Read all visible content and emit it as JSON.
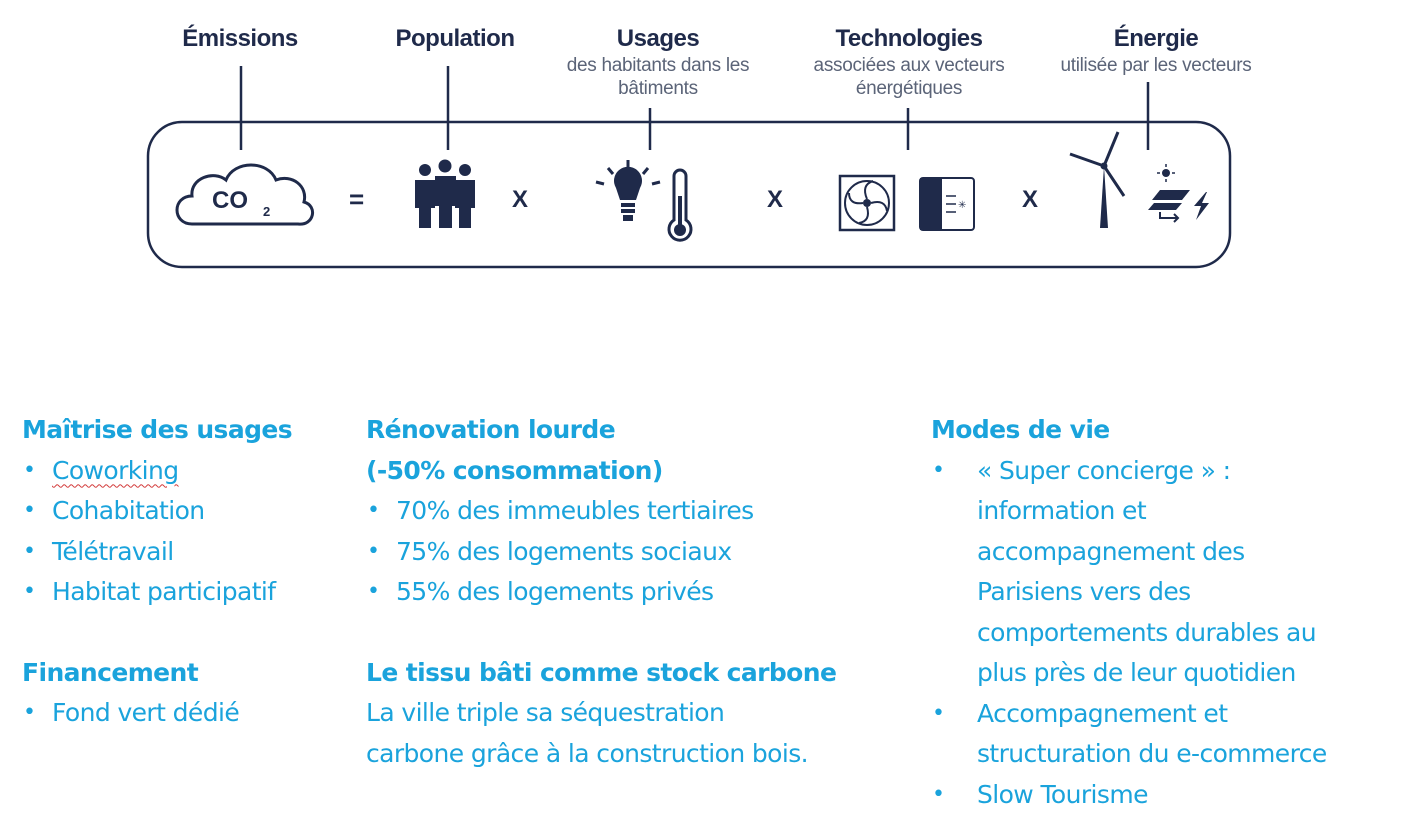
{
  "equation": {
    "terms": [
      {
        "title": "Émissions",
        "subtitle": ""
      },
      {
        "title": "Population",
        "subtitle": ""
      },
      {
        "title": "Usages",
        "subtitle": "des habitants dans les bâtiments"
      },
      {
        "title": "Technologies",
        "subtitle": "associées aux vecteurs énergétiques"
      },
      {
        "title": "Énergie",
        "subtitle": "utilisée par les vecteurs"
      }
    ],
    "co2_text": "CO",
    "co2_sub": "2",
    "equals": "=",
    "times": "X"
  },
  "colors": {
    "accent": "#1aa3dc",
    "dark": "#1f2a4a"
  },
  "icons": [
    "cloud-co2-icon",
    "people-icon",
    "lightbulb-icon",
    "thermometer-icon",
    "fan-icon",
    "heat-exchanger-icon",
    "wind-turbine-icon",
    "solar-panel-icon"
  ],
  "columns": {
    "col1": {
      "sections": [
        {
          "heading": "Maîtrise des usages",
          "items": [
            "Coworking",
            "Cohabitation",
            "Télétravail",
            "Habitat participatif"
          ]
        },
        {
          "heading": "Financement",
          "items": [
            "Fond vert dédié"
          ]
        }
      ]
    },
    "col2": {
      "sections": [
        {
          "heading": "Rénovation lourde",
          "heading2": "(-50% consommation)",
          "items": [
            "70% des immeubles tertiaires",
            "75% des logements sociaux",
            "55% des logements privés"
          ]
        },
        {
          "heading": "Le tissu bâti comme stock carbone",
          "text1": "La ville triple sa séquestration",
          "text2": "carbone grâce à la construction bois."
        }
      ]
    },
    "col3": {
      "heading": "Modes de vie",
      "items": [
        [
          "« Super concierge » :",
          "information et",
          "accompagnement des",
          "Parisiens vers des",
          "comportements durables au",
          "plus près de leur quotidien"
        ],
        [
          "Accompagnement et",
          "structuration du e-commerce"
        ],
        [
          "Slow Tourisme"
        ]
      ]
    }
  }
}
